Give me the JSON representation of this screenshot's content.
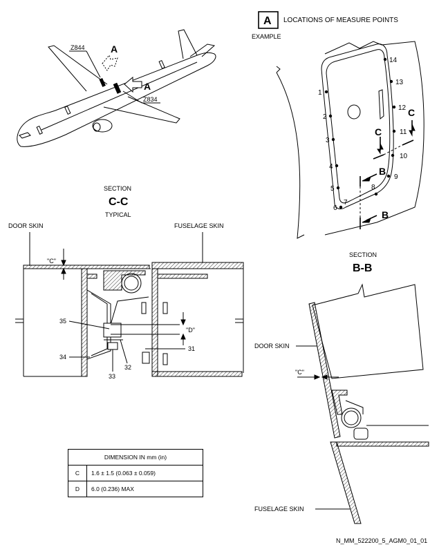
{
  "detail_a": {
    "letter": "A",
    "title": "LOCATIONS OF MEASURE POINTS",
    "subtitle": "EXAMPLE",
    "points": [
      "1",
      "2",
      "3",
      "4",
      "5",
      "6",
      "7",
      "8",
      "9",
      "10",
      "11",
      "12",
      "13",
      "14"
    ],
    "view_b": "B",
    "view_c": "C"
  },
  "aircraft": {
    "zone_upper": "Z844",
    "zone_lower": "Z834",
    "view_a": "A"
  },
  "section_cc": {
    "heading": "SECTION",
    "name": "C-C",
    "note": "TYPICAL",
    "door_skin": "DOOR SKIN",
    "fuselage_skin": "FUSELAGE SKIN",
    "dim_c": "\"C\"",
    "dim_d": "\"D\"",
    "items": [
      "35",
      "34",
      "33",
      "32",
      "31"
    ]
  },
  "section_bb": {
    "heading": "SECTION",
    "name": "B-B",
    "door_skin": "DOOR SKIN",
    "fuselage_skin": "FUSELAGE SKIN",
    "dim_c": "\"C\""
  },
  "dimension_table": {
    "header": "DIMENSION IN mm (in)",
    "rows": [
      {
        "key": "C",
        "value": "1.6 ± 1.5 (0.063 ± 0.059)"
      },
      {
        "key": "D",
        "value": "6.0 (0.236) MAX"
      }
    ]
  },
  "figure_id": "N_MM_522200_5_AGM0_01_01"
}
